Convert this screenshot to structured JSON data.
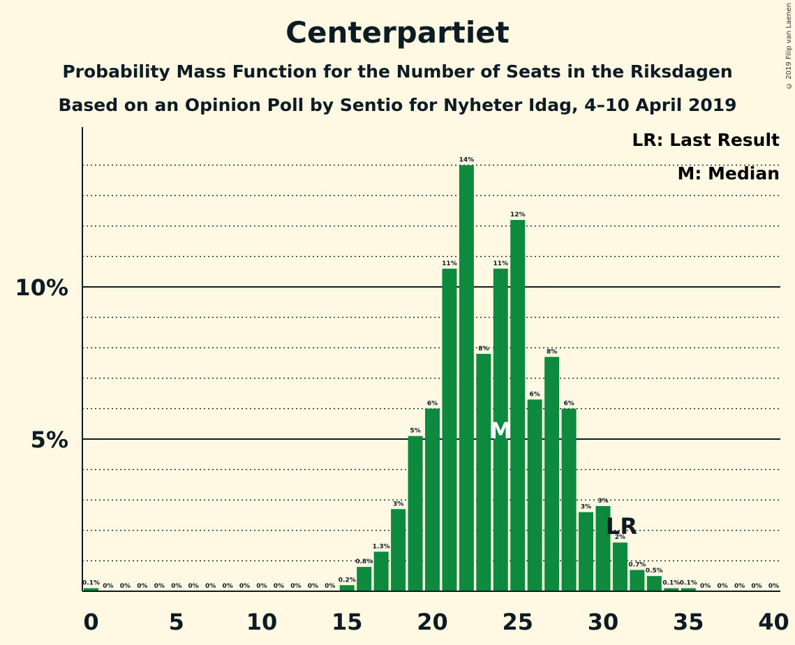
{
  "title": "Centerpartiet",
  "subtitle1": "Probability Mass Function for the Number of Seats in the Riksdagen",
  "subtitle2": "Based on an Opinion Poll by Sentio for Nyheter Idag, 4–10 April 2019",
  "copyright": "© 2019 Filip van Laenen",
  "legend": {
    "last_result": "LR: Last Result",
    "median": "M: Median"
  },
  "colors": {
    "background": "#fff8e2",
    "bar": "#0e8a3e",
    "text": "#0d1b24"
  },
  "chart_data": {
    "type": "bar",
    "x": [
      0,
      1,
      2,
      3,
      4,
      5,
      6,
      7,
      8,
      9,
      10,
      11,
      12,
      13,
      14,
      15,
      16,
      17,
      18,
      19,
      20,
      21,
      22,
      23,
      24,
      25,
      26,
      27,
      28,
      29,
      30,
      31,
      32,
      33,
      34,
      35,
      36,
      37,
      38,
      39,
      40
    ],
    "values": [
      0.1,
      0,
      0,
      0,
      0,
      0,
      0,
      0,
      0,
      0,
      0,
      0,
      0,
      0,
      0,
      0.2,
      0.8,
      1.3,
      2.7,
      5.1,
      6.0,
      10.6,
      14.0,
      7.8,
      10.6,
      12.2,
      6.3,
      7.7,
      6.0,
      2.6,
      2.8,
      1.6,
      0.7,
      0.5,
      0.1,
      0.1,
      0,
      0,
      0,
      0,
      0
    ],
    "labels": [
      "0.1%",
      "0%",
      "0%",
      "0%",
      "0%",
      "0%",
      "0%",
      "0%",
      "0%",
      "0%",
      "0%",
      "0%",
      "0%",
      "0%",
      "0%",
      "0.2%",
      "0.8%",
      "1.3%",
      "3%",
      "5%",
      "6%",
      "11%",
      "14%",
      "8%",
      "11%",
      "12%",
      "6%",
      "8%",
      "6%",
      "3%",
      "3%",
      "2%",
      "0.7%",
      "0.5%",
      "0.1%",
      "0.1%",
      "0%",
      "0%",
      "0%",
      "0%",
      "0%"
    ],
    "x_ticks": [
      "0",
      "5",
      "10",
      "15",
      "20",
      "25",
      "30",
      "35",
      "40"
    ],
    "y_ticks": [
      "5%",
      "10%"
    ],
    "y_tick_values": [
      5,
      10
    ],
    "ylim": [
      0,
      15.3
    ],
    "xlim": [
      -0.5,
      40
    ],
    "grid": "dotted every 1%",
    "median": 24,
    "median_label": "M",
    "last_result": 31,
    "last_result_label": "LR"
  }
}
